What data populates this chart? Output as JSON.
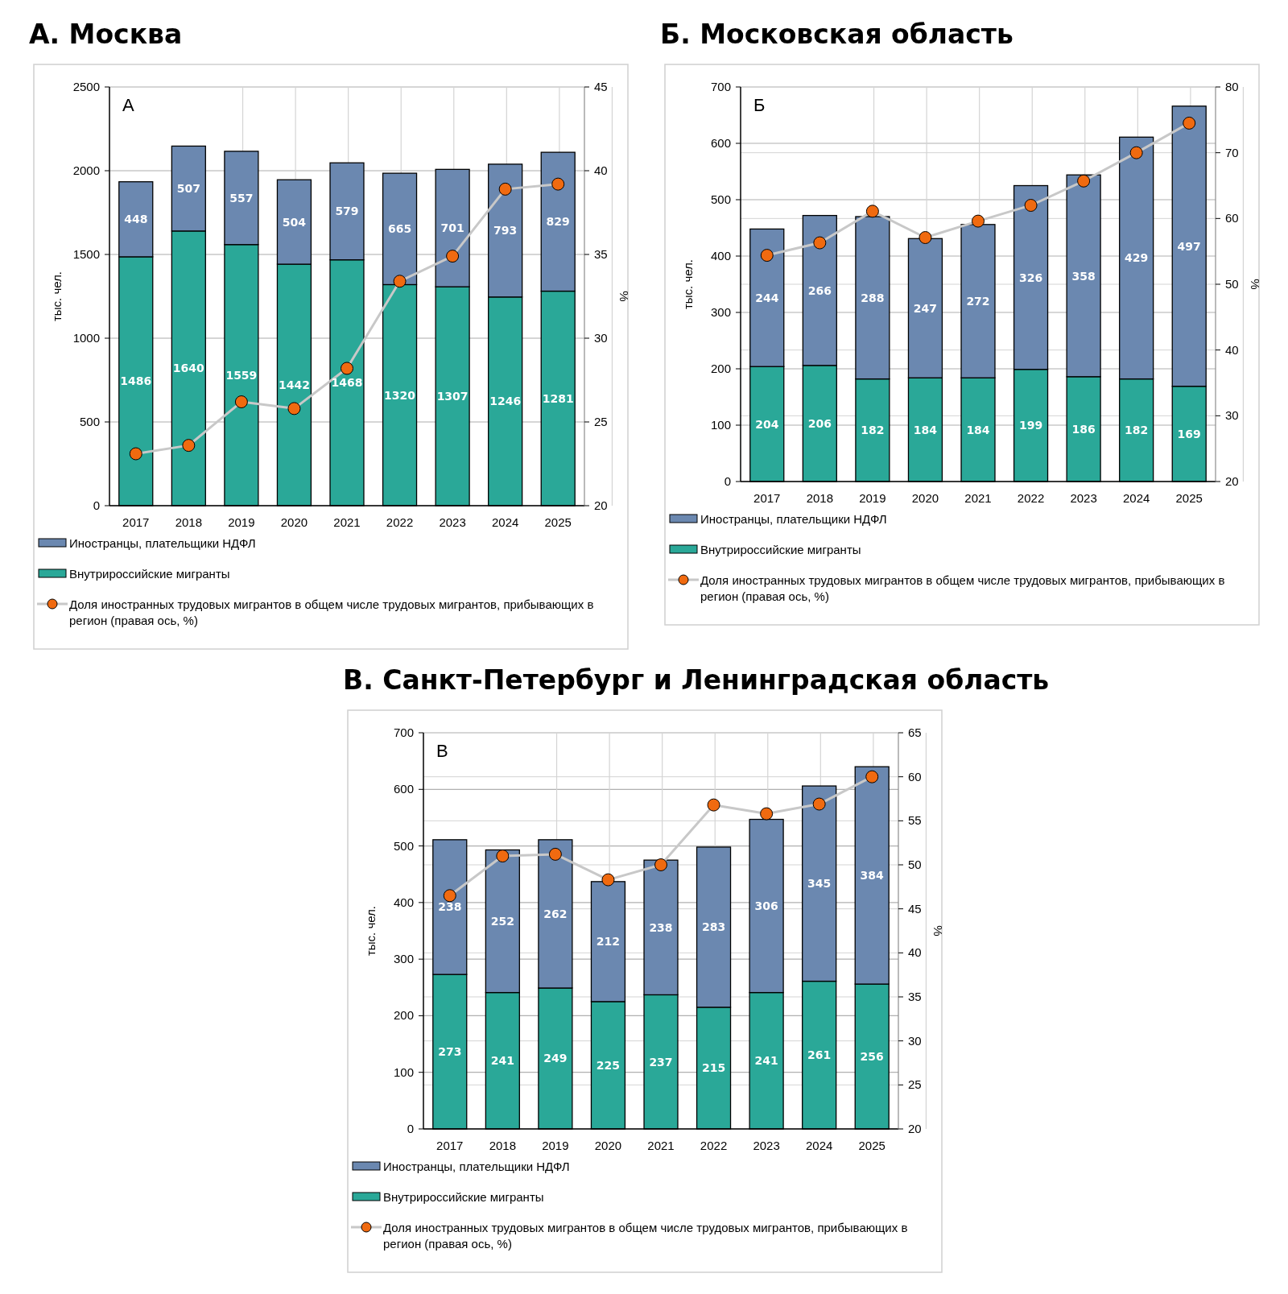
{
  "chart_data": [
    {
      "type": "bar",
      "stacked": true,
      "title": "А. Москва",
      "ylabel": "тыс. чел.",
      "y2label": "%",
      "annotations": [
        "А"
      ],
      "categories": [
        "2017",
        "2018",
        "2019",
        "2020",
        "2021",
        "2022",
        "2023",
        "2024",
        "2025"
      ],
      "ylim": [
        0,
        2500
      ],
      "yticks": [
        0,
        500,
        1000,
        1500,
        2000,
        2500
      ],
      "y2lim": [
        20,
        45
      ],
      "y2ticks": [
        20,
        25,
        30,
        35,
        40,
        45
      ],
      "grid": true,
      "legend": "bottom",
      "marker": "circle",
      "series": [
        {
          "name": "Внутрироссийские мигранты",
          "color": "#2aa898",
          "values": [
            1486,
            1640,
            1559,
            1442,
            1468,
            1320,
            1307,
            1246,
            1281
          ],
          "value_labels": [
            "1486",
            "1640",
            "1559",
            "1442",
            "1468",
            "1320",
            "1307",
            "1246",
            "1281"
          ]
        },
        {
          "name": "Иностранцы, плательщики НДФЛ",
          "color": "#6b88b0",
          "values": [
            448,
            507,
            557,
            504,
            579,
            665,
            701,
            793,
            829
          ],
          "value_labels": [
            "448",
            "507",
            "557",
            "504",
            "579",
            "665",
            "701",
            "793",
            "829"
          ]
        },
        {
          "name": "Доля иностранных трудовых мигрантов в общем числе трудовых мигрантов, прибывающих в регион (правая ось, %)",
          "type": "line",
          "axis": "y2",
          "color": "#f06a10",
          "values": [
            23.1,
            23.6,
            26.2,
            25.8,
            28.2,
            33.4,
            34.9,
            38.9,
            39.2
          ]
        }
      ]
    },
    {
      "type": "bar",
      "stacked": true,
      "title": "Б. Московская область",
      "ylabel": "тыс. чел.",
      "y2label": "%",
      "annotations": [
        "Б"
      ],
      "categories": [
        "2017",
        "2018",
        "2019",
        "2020",
        "2021",
        "2022",
        "2023",
        "2024",
        "2025"
      ],
      "ylim": [
        0,
        700
      ],
      "yticks": [
        0,
        100,
        200,
        300,
        400,
        500,
        600,
        700
      ],
      "y2lim": [
        20,
        80
      ],
      "y2ticks": [
        20,
        30,
        40,
        50,
        60,
        70,
        80
      ],
      "grid": true,
      "legend": "bottom",
      "marker": "circle",
      "series": [
        {
          "name": "Внутрироссийские мигранты",
          "color": "#2aa898",
          "values": [
            204,
            206,
            182,
            184,
            184,
            199,
            186,
            182,
            169
          ],
          "value_labels": [
            "204",
            "206",
            "182",
            "184",
            "184",
            "199",
            "186",
            "182",
            "169"
          ]
        },
        {
          "name": "Иностранцы, плательщики НДФЛ",
          "color": "#6b88b0",
          "values": [
            244,
            266,
            288,
            247,
            272,
            326,
            358,
            429,
            497
          ],
          "value_labels": [
            "244",
            "266",
            "288",
            "247",
            "272",
            "326",
            "358",
            "429",
            "497"
          ]
        },
        {
          "name": "Доля иностранных трудовых мигрантов в общем числе трудовых мигрантов, прибывающих в регион (правая ось, %)",
          "type": "line",
          "axis": "y2",
          "color": "#f06a10",
          "values": [
            54.4,
            56.3,
            61.1,
            57.1,
            59.6,
            62.0,
            65.7,
            70.0,
            74.5
          ]
        }
      ]
    },
    {
      "type": "bar",
      "stacked": true,
      "title": "В. Санкт-Петербург и Ленинградская область",
      "ylabel": "тыс. чел.",
      "y2label": "%",
      "annotations": [
        "В"
      ],
      "categories": [
        "2017",
        "2018",
        "2019",
        "2020",
        "2021",
        "2022",
        "2023",
        "2024",
        "2025"
      ],
      "ylim": [
        0,
        700
      ],
      "yticks": [
        0,
        100,
        200,
        300,
        400,
        500,
        600,
        700
      ],
      "y2lim": [
        20,
        65
      ],
      "y2ticks": [
        20,
        25,
        30,
        35,
        40,
        45,
        50,
        55,
        60,
        65
      ],
      "grid": true,
      "legend": "bottom",
      "marker": "circle",
      "series": [
        {
          "name": "Внутрироссийские мигранты",
          "color": "#2aa898",
          "values": [
            273,
            241,
            249,
            225,
            237,
            215,
            241,
            261,
            256
          ],
          "value_labels": [
            "273",
            "241",
            "249",
            "225",
            "237",
            "215",
            "241",
            "261",
            "256"
          ]
        },
        {
          "name": "Иностранцы, плательщики НДФЛ",
          "color": "#6b88b0",
          "values": [
            238,
            252,
            262,
            212,
            238,
            283,
            306,
            345,
            384
          ],
          "value_labels": [
            "238",
            "252",
            "262",
            "212",
            "238",
            "283",
            "306",
            "345",
            "384"
          ]
        },
        {
          "name": "Доля иностранных трудовых мигрантов в общем числе трудовых мигрантов, прибывающих в регион (правая ось, %)",
          "type": "line",
          "axis": "y2",
          "color": "#f06a10",
          "values": [
            46.5,
            51.0,
            51.2,
            48.3,
            50.0,
            56.8,
            55.8,
            56.9,
            60.0
          ]
        }
      ]
    }
  ]
}
